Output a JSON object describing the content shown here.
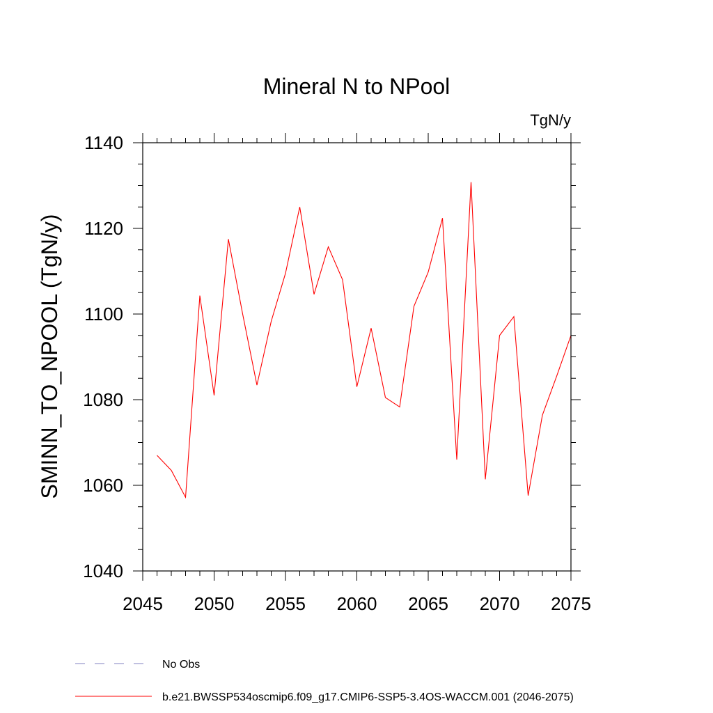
{
  "chart_data": {
    "type": "line",
    "title": "Mineral N to NPool",
    "units": "TgN/y",
    "ylabel": "SMINN_TO_NPOOL  (TgN/y)",
    "xlabel": "",
    "xlim": [
      2045,
      2075
    ],
    "ylim": [
      1040,
      1140
    ],
    "x_ticks": [
      2045,
      2050,
      2055,
      2060,
      2065,
      2070,
      2075
    ],
    "y_ticks": [
      1040,
      1060,
      1080,
      1100,
      1120,
      1140
    ],
    "x_tick_labels": [
      "2045",
      "2050",
      "2055",
      "2060",
      "2065",
      "2070",
      "2075"
    ],
    "y_tick_labels": [
      "1040",
      "1060",
      "1080",
      "1100",
      "1120",
      "1140"
    ],
    "series": [
      {
        "name": "b.e21.BWSSP534oscmip6.f09_g17.CMIP6-SSP5-3.4OS-WACCM.001 (2046-2075)",
        "color": "#ff0000",
        "x": [
          2046,
          2047,
          2048,
          2049,
          2050,
          2051,
          2052,
          2053,
          2054,
          2055,
          2056,
          2057,
          2058,
          2059,
          2060,
          2061,
          2062,
          2063,
          2064,
          2065,
          2066,
          2067,
          2068,
          2069,
          2070,
          2071,
          2072,
          2073,
          2074,
          2075
        ],
        "values": [
          1067.0,
          1063.5,
          1057.2,
          1104.3,
          1081.0,
          1117.5,
          1100.0,
          1083.4,
          1098.3,
          1109.5,
          1125.0,
          1104.6,
          1115.7,
          1108.0,
          1083.0,
          1096.7,
          1080.5,
          1078.3,
          1101.8,
          1109.8,
          1122.4,
          1066.0,
          1130.8,
          1061.4,
          1095.0,
          1099.4,
          1057.6,
          1076.4,
          1085.5,
          1095.0
        ]
      }
    ],
    "legend": {
      "placement": "bottom-left",
      "entries": [
        {
          "label": "No Obs",
          "color": "#8080c0",
          "style": "dashed"
        },
        {
          "label": "b.e21.BWSSP534oscmip6.f09_g17.CMIP6-SSP5-3.4OS-WACCM.001 (2046-2075)",
          "color": "#ff0000",
          "style": "solid"
        }
      ]
    }
  }
}
